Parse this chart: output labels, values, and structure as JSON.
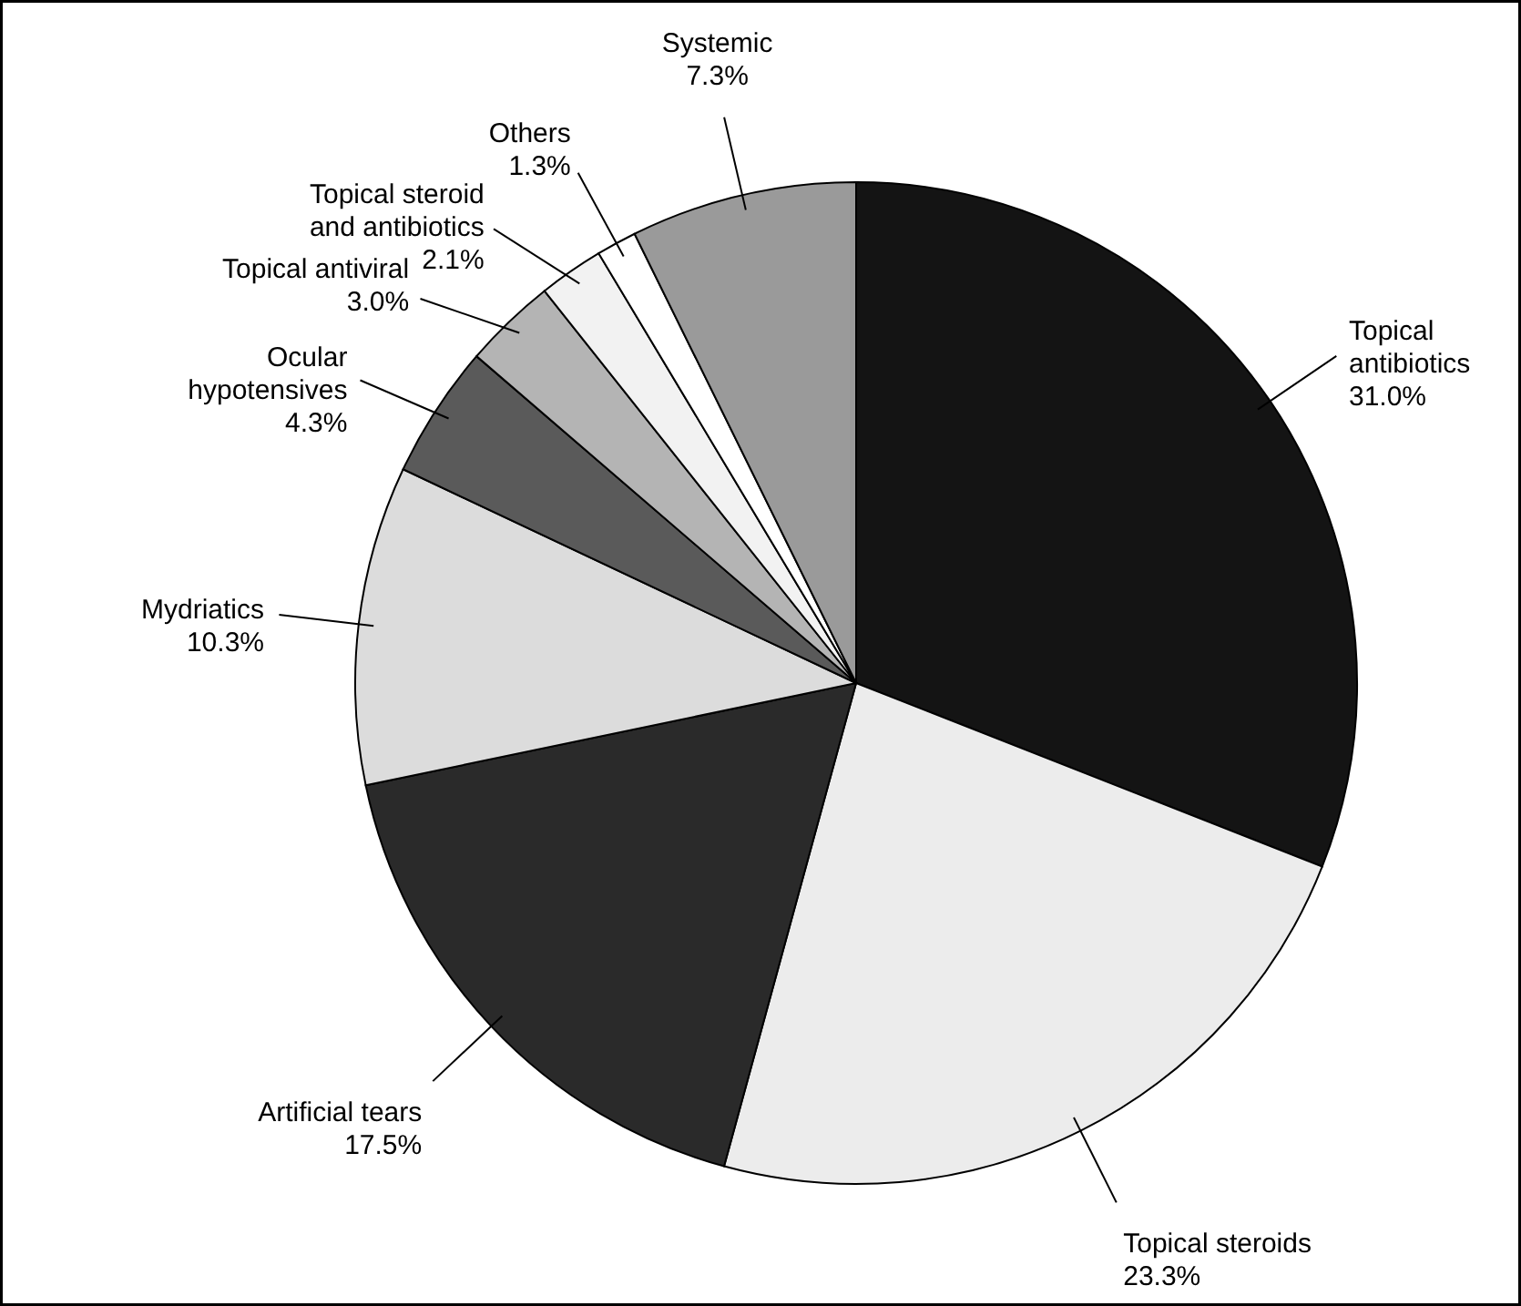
{
  "chart_data": {
    "type": "pie",
    "categories": [
      "Topical antibiotics",
      "Topical steroids",
      "Artificial tears",
      "Mydriatics",
      "Ocular hypotensives",
      "Topical antiviral",
      "Topical steroid and antibiotics",
      "Others",
      "Systemic"
    ],
    "values": [
      31.0,
      23.3,
      17.5,
      10.3,
      4.3,
      3.0,
      2.1,
      1.3,
      7.3
    ],
    "value_labels": [
      "31.0%",
      "23.3%",
      "17.5%",
      "10.3%",
      "4.3%",
      "3.0%",
      "2.1%",
      "1.3%",
      "7.3%"
    ],
    "colors": [
      "#141414",
      "#ececec",
      "#2a2a2a",
      "#dcdcdc",
      "#5a5a5a",
      "#b4b4b4",
      "#f2f2f2",
      "#ffffff",
      "#9a9a9a"
    ]
  }
}
